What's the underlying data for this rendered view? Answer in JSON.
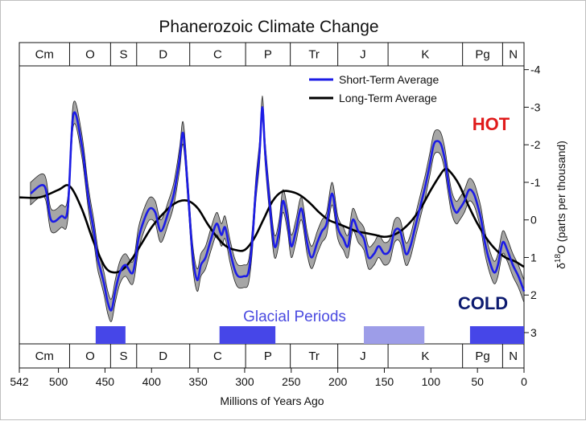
{
  "chart_data": {
    "type": "line",
    "title": "Phanerozoic Climate Change",
    "xlabel": "Millions of Years Ago",
    "ylabel": "δ18O (parts per thousand)",
    "ylabel_main": "δ",
    "ylabel_sup": "18",
    "ylabel_rest": "O (parts per thousand)",
    "xlim": [
      542,
      0
    ],
    "ylim": [
      3.3,
      -4.1
    ],
    "y_inverted": true,
    "x_ticks": [
      {
        "v": 542,
        "label": "542"
      },
      {
        "v": 500,
        "label": "500"
      },
      {
        "v": 450,
        "label": "450"
      },
      {
        "v": 400,
        "label": "400"
      },
      {
        "v": 350,
        "label": "350"
      },
      {
        "v": 300,
        "label": "300"
      },
      {
        "v": 250,
        "label": "250"
      },
      {
        "v": 200,
        "label": "200"
      },
      {
        "v": 150,
        "label": "150"
      },
      {
        "v": 100,
        "label": "100"
      },
      {
        "v": 50,
        "label": "50"
      },
      {
        "v": 0,
        "label": "0"
      }
    ],
    "y_ticks": [
      {
        "v": -4,
        "label": "-4"
      },
      {
        "v": -3,
        "label": "-3"
      },
      {
        "v": -2,
        "label": "-2"
      },
      {
        "v": -1,
        "label": "-1"
      },
      {
        "v": 0,
        "label": "0"
      },
      {
        "v": 1,
        "label": "1"
      },
      {
        "v": 2,
        "label": "2"
      },
      {
        "v": 3,
        "label": "3"
      }
    ],
    "periods": [
      {
        "label": "Cm",
        "start": 542,
        "end": 488
      },
      {
        "label": "O",
        "start": 488,
        "end": 444
      },
      {
        "label": "S",
        "start": 444,
        "end": 416
      },
      {
        "label": "D",
        "start": 416,
        "end": 359
      },
      {
        "label": "C",
        "start": 359,
        "end": 299
      },
      {
        "label": "P",
        "start": 299,
        "end": 251
      },
      {
        "label": "Tr",
        "start": 251,
        "end": 200
      },
      {
        "label": "J",
        "start": 200,
        "end": 146
      },
      {
        "label": "K",
        "start": 146,
        "end": 66
      },
      {
        "label": "Pg",
        "start": 66,
        "end": 23
      },
      {
        "label": "N",
        "start": 23,
        "end": 0
      }
    ],
    "legend_position": "top-right",
    "series": [
      {
        "name": "Short-Term Average",
        "color": "#1c1ce6",
        "band_color": "#a6a6a6",
        "band_width": 0.3,
        "x": [
          530,
          515,
          508,
          497,
          490,
          484,
          475,
          468,
          462,
          458,
          455,
          451,
          447,
          443,
          439,
          434,
          428,
          420,
          414,
          408,
          402,
          396,
          390,
          382,
          376,
          370,
          366,
          361,
          356,
          351,
          347,
          342,
          336,
          330,
          325,
          321,
          316,
          311,
          307,
          301,
          296,
          292,
          288,
          284,
          281,
          278,
          273,
          268,
          263,
          259,
          254,
          250,
          245,
          239,
          233,
          228,
          222,
          217,
          212,
          206,
          200,
          194,
          189,
          184,
          178,
          172,
          167,
          161,
          156,
          150,
          144,
          139,
          133,
          127,
          122,
          117,
          111,
          106,
          101,
          97,
          93,
          89,
          85,
          82,
          78,
          73,
          69,
          64,
          59,
          54,
          50,
          46,
          42,
          37,
          32,
          28,
          23,
          18,
          12,
          6,
          0
        ],
        "y": [
          -0.7,
          -0.9,
          0,
          -0.1,
          -0.3,
          -2.8,
          -2.0,
          -0.6,
          0.3,
          1.0,
          1.3,
          1.7,
          2.2,
          2.4,
          1.9,
          1.4,
          1.2,
          1.4,
          0.5,
          0,
          -0.3,
          -0.2,
          0.3,
          -0.2,
          -0.7,
          -1.6,
          -2.3,
          -0.8,
          0.9,
          1.6,
          1.2,
          1.0,
          0.5,
          0.1,
          0.4,
          0.2,
          0.8,
          1.3,
          1.5,
          1.5,
          1.4,
          0.6,
          -0.8,
          -1.8,
          -3.0,
          -1.8,
          -0.4,
          0.7,
          0.3,
          -0.5,
          0,
          0.7,
          0.3,
          -0.3,
          0.6,
          1.0,
          0.6,
          0.3,
          0.1,
          -0.7,
          0.2,
          0.5,
          0.7,
          0,
          0.3,
          0.5,
          1.0,
          0.9,
          0.7,
          0.9,
          0.8,
          0.3,
          0.3,
          0.9,
          0.7,
          0.2,
          -0.4,
          -0.9,
          -1.5,
          -2.0,
          -2.1,
          -2.0,
          -1.6,
          -1.1,
          -0.5,
          -0.2,
          -0.3,
          -0.5,
          -0.8,
          -0.7,
          -0.4,
          0,
          0.6,
          1.1,
          1.4,
          1.2,
          0.6,
          0.8,
          1.2,
          1.5,
          1.9
        ]
      },
      {
        "name": "Long-Term Average",
        "color": "#000000",
        "x": [
          542,
          520,
          500,
          488,
          475,
          462,
          450,
          440,
          430,
          420,
          410,
          400,
          390,
          380,
          370,
          360,
          350,
          340,
          330,
          320,
          310,
          300,
          290,
          280,
          270,
          260,
          250,
          240,
          230,
          220,
          210,
          200,
          190,
          180,
          170,
          160,
          150,
          140,
          130,
          120,
          110,
          100,
          90,
          85,
          80,
          70,
          60,
          50,
          40,
          30,
          20,
          10,
          0
        ],
        "y": [
          -0.6,
          -0.6,
          -0.8,
          -0.9,
          -0.3,
          0.6,
          1.25,
          1.4,
          1.3,
          1.0,
          0.6,
          0.2,
          -0.1,
          -0.35,
          -0.5,
          -0.5,
          -0.3,
          0.1,
          0.45,
          0.7,
          0.8,
          0.8,
          0.5,
          0,
          -0.5,
          -0.75,
          -0.75,
          -0.65,
          -0.45,
          -0.2,
          0,
          0.1,
          0.2,
          0.3,
          0.35,
          0.4,
          0.45,
          0.4,
          0.25,
          0,
          -0.35,
          -0.8,
          -1.2,
          -1.35,
          -1.3,
          -0.95,
          -0.4,
          0.1,
          0.5,
          0.8,
          1.0,
          1.1,
          1.25
        ]
      }
    ],
    "annotations": {
      "hot": {
        "label": "HOT",
        "color": "#e01b1b"
      },
      "cold": {
        "label": "COLD",
        "color": "#0d1b70"
      },
      "glacial_label": "Glacial Periods",
      "glacial_periods": [
        {
          "start": 460,
          "end": 428,
          "color": "#4646e8"
        },
        {
          "start": 327,
          "end": 267,
          "color": "#4646e8"
        },
        {
          "start": 172,
          "end": 107,
          "color": "#9d9de8"
        },
        {
          "start": 58,
          "end": 0,
          "color": "#4646e8"
        }
      ]
    }
  }
}
